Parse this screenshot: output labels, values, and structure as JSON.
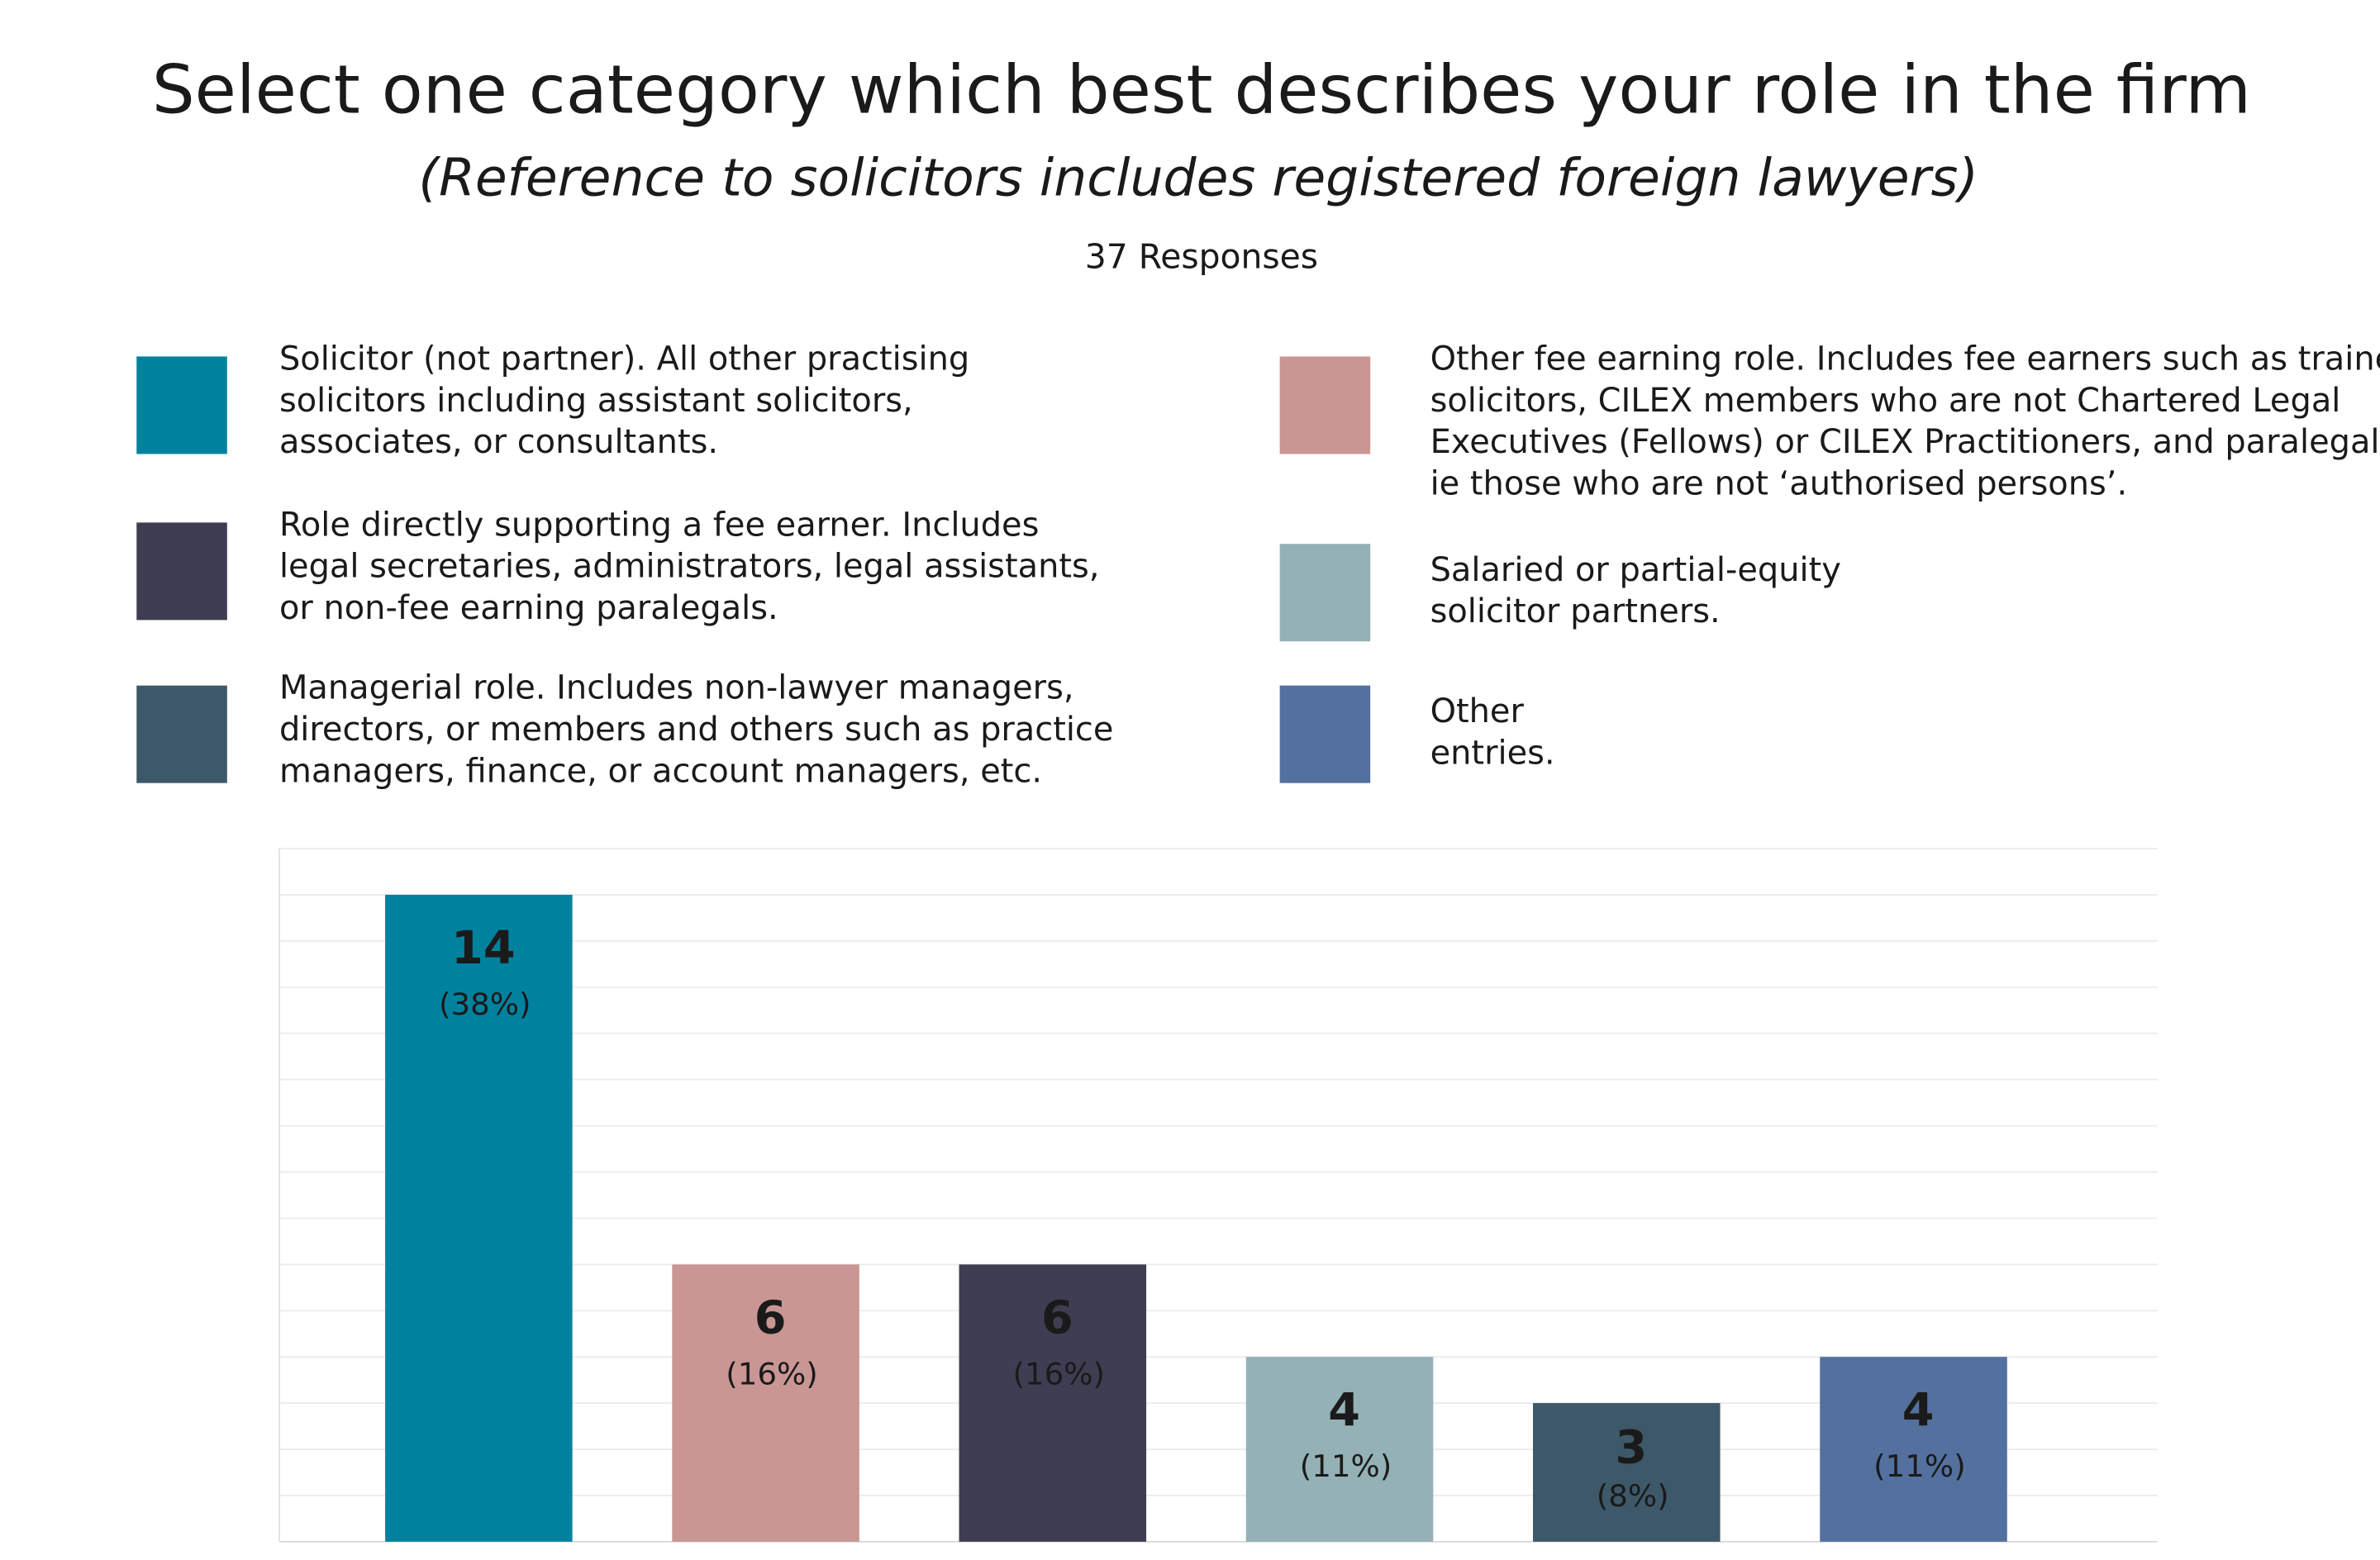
{
  "chart_data": {
    "type": "bar",
    "title": "Select one category which best describes your role in the firm",
    "subtitle": "(Reference to solicitors includes registered foreign lawyers)",
    "responses": "37 Responses",
    "categories": [
      [
        "Solicitor (not partner). All other practising",
        "solicitors including assistant solicitors,",
        "associates, or consultants."
      ],
      [
        "Other fee earning role. Includes fee earners such as trainee",
        "solicitors, CILEX members who are not Chartered Legal",
        "Executives (Fellows) or CILEX Practitioners, and paralegals",
        "ie those who are not ‘authorised persons’."
      ],
      [
        "Role directly supporting a fee earner. Includes",
        "legal secretaries, administrators, legal assistants,",
        "or non-fee earning paralegals."
      ],
      [
        "Salaried or partial-equity",
        "solicitor partners."
      ],
      [
        "Managerial role. Includes non-lawyer managers,",
        "directors, or members and others such as practice",
        "managers, finance, or account managers, etc."
      ],
      [
        "Other",
        "entries."
      ]
    ],
    "values": [
      14,
      6,
      6,
      4,
      3,
      4
    ],
    "percent_labels": [
      "(38%)",
      "(16%)",
      "(16%)",
      "(11%)",
      "(8%)",
      "(11%)"
    ],
    "colors": [
      "#00829e",
      "#c99694",
      "#3f3d52",
      "#94b1b6",
      "#3d5869",
      "#54709e"
    ],
    "ylim": [
      0,
      15
    ],
    "yticks": [
      0,
      1,
      2,
      3,
      4,
      5,
      6,
      7,
      8,
      9,
      10,
      11,
      12,
      13,
      14,
      15
    ],
    "grid": true
  }
}
